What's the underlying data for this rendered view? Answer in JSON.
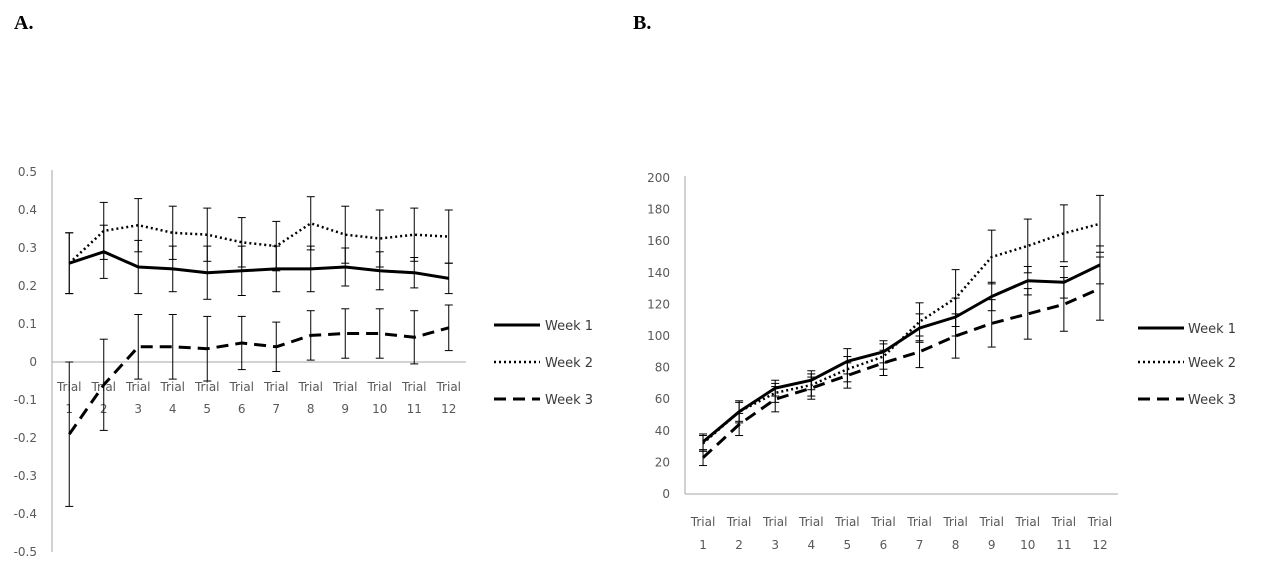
{
  "panel_labels": {
    "a": "A.",
    "b": "B."
  },
  "legend_names": [
    "Week 1",
    "Week 2",
    "Week 3"
  ],
  "colors": {
    "series": "#000000",
    "axis": "#a6a6a6",
    "text": "#595959"
  },
  "chart_data": [
    {
      "type": "line",
      "panel": "A.",
      "title": "",
      "xlabel": "",
      "ylabel": "",
      "categories": [
        "Trial 1",
        "Trial 2",
        "Trial 3",
        "Trial 4",
        "Trial 5",
        "Trial 6",
        "Trial 7",
        "Trial 8",
        "Trial 9",
        "Trial 10",
        "Trial 11",
        "Trial 12"
      ],
      "ylim": [
        -0.5,
        0.5
      ],
      "ytick_step": 0.1,
      "grid": false,
      "legend": "right",
      "series": [
        {
          "name": "Week 1",
          "style": "solid",
          "values": [
            0.26,
            0.29,
            0.25,
            0.245,
            0.235,
            0.24,
            0.245,
            0.245,
            0.25,
            0.24,
            0.235,
            0.22
          ],
          "errors": [
            0.08,
            0.07,
            0.07,
            0.06,
            0.07,
            0.065,
            0.06,
            0.06,
            0.05,
            0.05,
            0.04,
            0.04
          ]
        },
        {
          "name": "Week 2",
          "style": "dotted",
          "values": [
            0.26,
            0.345,
            0.36,
            0.34,
            0.335,
            0.315,
            0.305,
            0.365,
            0.335,
            0.325,
            0.335,
            0.33
          ],
          "errors": [
            0.08,
            0.075,
            0.07,
            0.07,
            0.07,
            0.065,
            0.065,
            0.07,
            0.075,
            0.075,
            0.07,
            0.07
          ]
        },
        {
          "name": "Week 3",
          "style": "dashed",
          "values": [
            -0.19,
            -0.06,
            0.04,
            0.04,
            0.035,
            0.05,
            0.04,
            0.07,
            0.075,
            0.075,
            0.065,
            0.09
          ],
          "errors": [
            0.19,
            0.12,
            0.085,
            0.085,
            0.085,
            0.07,
            0.065,
            0.065,
            0.065,
            0.065,
            0.07,
            0.06
          ]
        }
      ]
    },
    {
      "type": "line",
      "panel": "B.",
      "title": "",
      "xlabel": "",
      "ylabel": "",
      "categories": [
        "Trial 1",
        "Trial 2",
        "Trial 3",
        "Trial 4",
        "Trial 5",
        "Trial 6",
        "Trial 7",
        "Trial 8",
        "Trial 9",
        "Trial 10",
        "Trial 11",
        "Trial 12"
      ],
      "ylim": [
        0,
        200
      ],
      "ytick_step": 20,
      "grid": false,
      "legend": "right",
      "series": [
        {
          "name": "Week 1",
          "style": "solid",
          "values": [
            33,
            52,
            67,
            72,
            84,
            90,
            105,
            112,
            125,
            135,
            134,
            145
          ],
          "errors": [
            5,
            7,
            5,
            6,
            8,
            7,
            9,
            12,
            9,
            9,
            10,
            12
          ]
        },
        {
          "name": "Week 2",
          "style": "dotted",
          "values": [
            32,
            52,
            64,
            69,
            79,
            87,
            109,
            124,
            150,
            157,
            165,
            171
          ],
          "errors": [
            5,
            6,
            6,
            7,
            8,
            8,
            12,
            18,
            17,
            17,
            18,
            18
          ]
        },
        {
          "name": "Week 3",
          "style": "dashed",
          "values": [
            23,
            44,
            60,
            67,
            75,
            83,
            90,
            100,
            108,
            114,
            120,
            130
          ],
          "errors": [
            5,
            7,
            8,
            7,
            8,
            8,
            10,
            14,
            15,
            16,
            17,
            20
          ]
        }
      ]
    }
  ]
}
